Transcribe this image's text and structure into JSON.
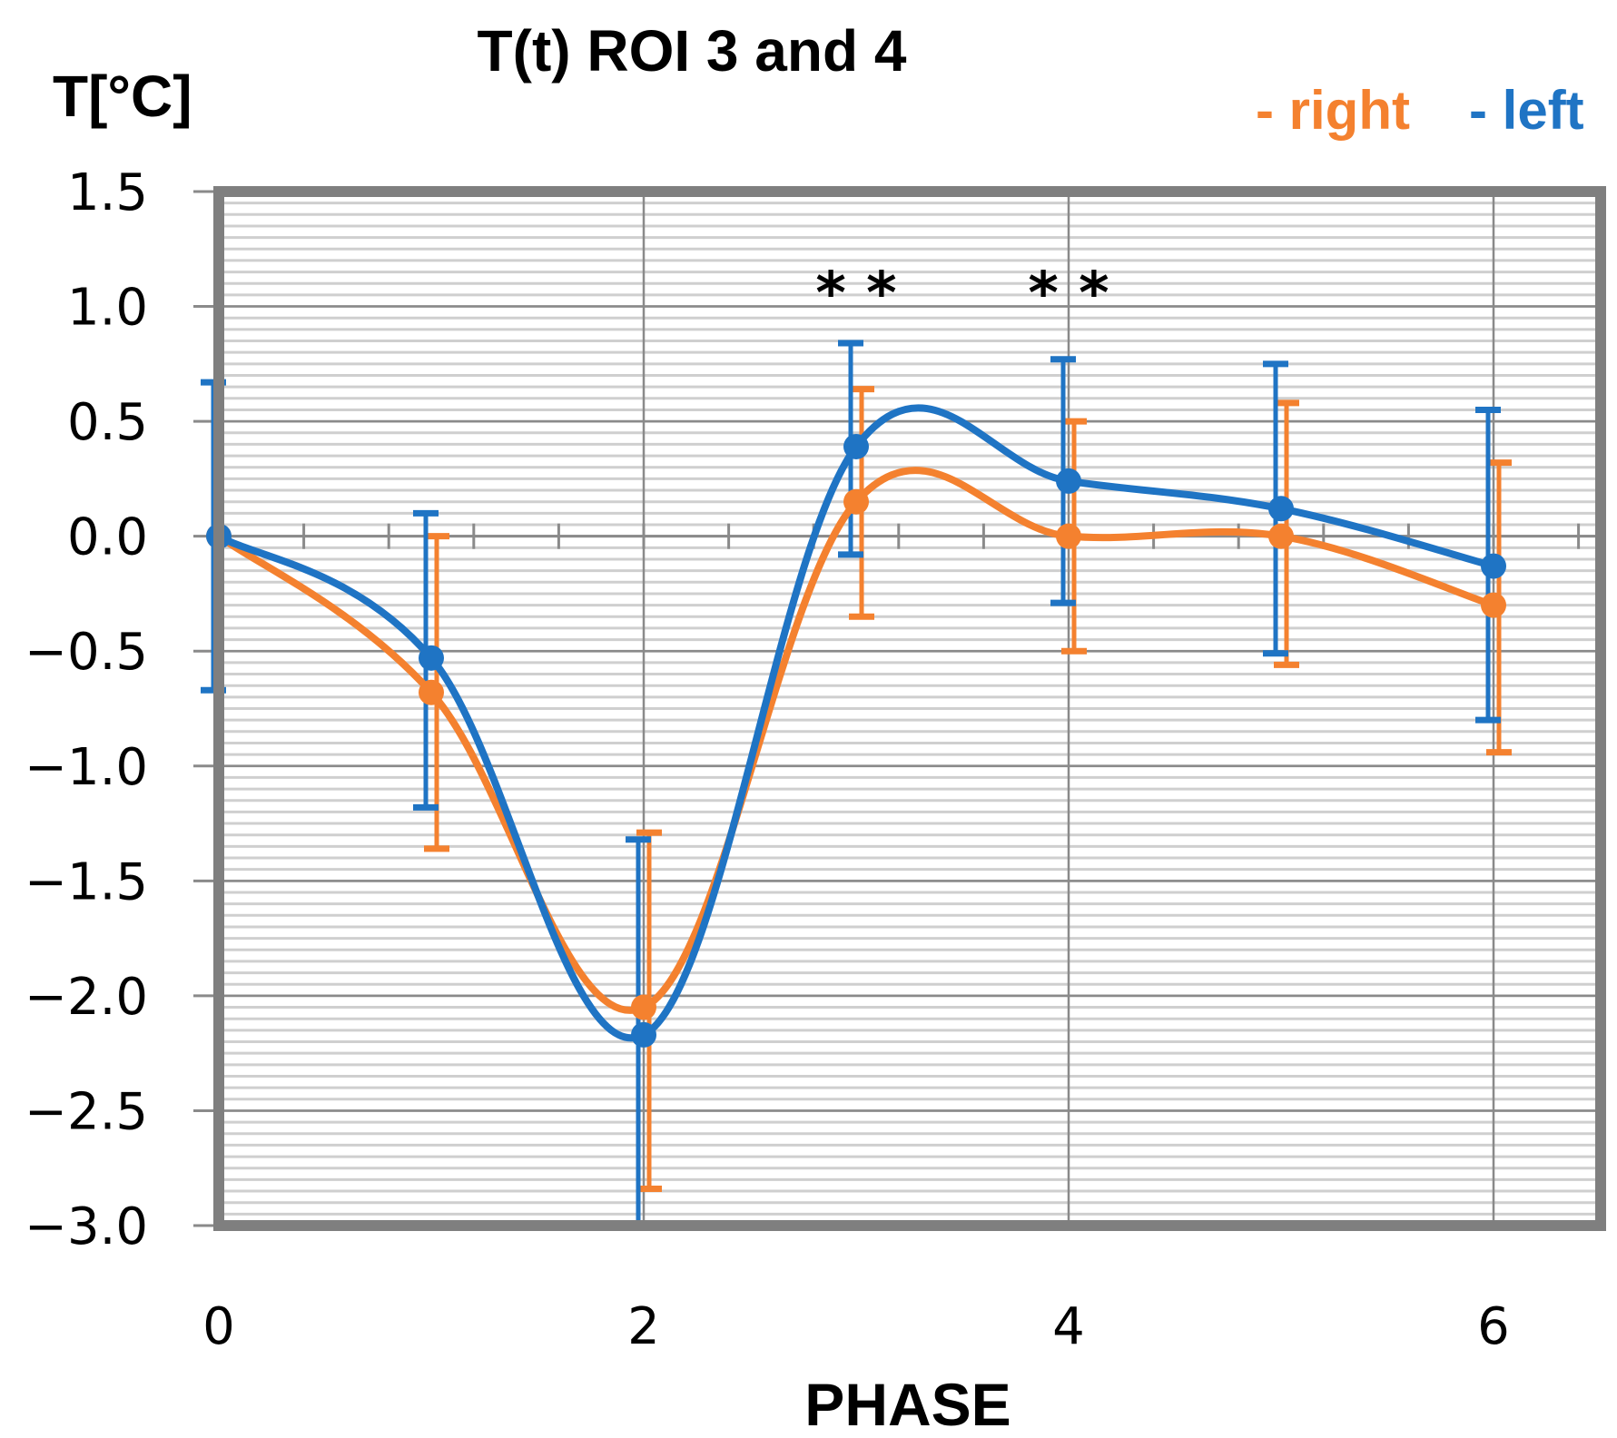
{
  "chart_data": {
    "type": "line",
    "title": "T(t) ROI 3 and 4",
    "ylabel": "T[°C]",
    "xlabel": "PHASE",
    "x": [
      0,
      1,
      2,
      3,
      4,
      5,
      6
    ],
    "xticks": [
      0,
      2,
      4,
      6
    ],
    "xtick_labels": [
      "0",
      "2",
      "4",
      "6"
    ],
    "xlim": [
      0,
      6.4
    ],
    "ylim": [
      -3.0,
      1.5
    ],
    "yticks": [
      1.5,
      1.0,
      0.5,
      0.0,
      -0.5,
      -1.0,
      -1.5,
      -2.0,
      -2.5,
      -3.0
    ],
    "ytick_labels": [
      "1.5",
      "1.0",
      "0.5",
      "0.0",
      "−0.5",
      "−1.0",
      "−1.5",
      "−2.0",
      "−2.5",
      "−3.0"
    ],
    "grid": true,
    "legend_position": "top-right",
    "series": [
      {
        "name": "right",
        "legend_label": "- right",
        "color": "#F4812F",
        "values": [
          0.0,
          -0.68,
          -2.05,
          0.15,
          0.0,
          0.0,
          -0.3
        ],
        "err_upper": [
          0.0,
          0.0,
          -1.29,
          0.64,
          0.5,
          0.58,
          0.32
        ],
        "err_lower": [
          0.0,
          -1.36,
          -2.84,
          -0.35,
          -0.5,
          -0.56,
          -0.94
        ]
      },
      {
        "name": "left",
        "legend_label": "- left",
        "color": "#1F74C4",
        "values": [
          0.0,
          -0.53,
          -2.17,
          0.39,
          0.24,
          0.12,
          -0.13
        ],
        "err_upper": [
          0.67,
          0.1,
          -1.32,
          0.84,
          0.77,
          0.75,
          0.55
        ],
        "err_lower": [
          -0.67,
          -1.18,
          -3.0,
          -0.08,
          -0.29,
          -0.51,
          -0.8
        ]
      }
    ],
    "annotations": [
      {
        "text": "* *",
        "x": 3
      },
      {
        "text": "* *",
        "x": 4
      }
    ]
  }
}
